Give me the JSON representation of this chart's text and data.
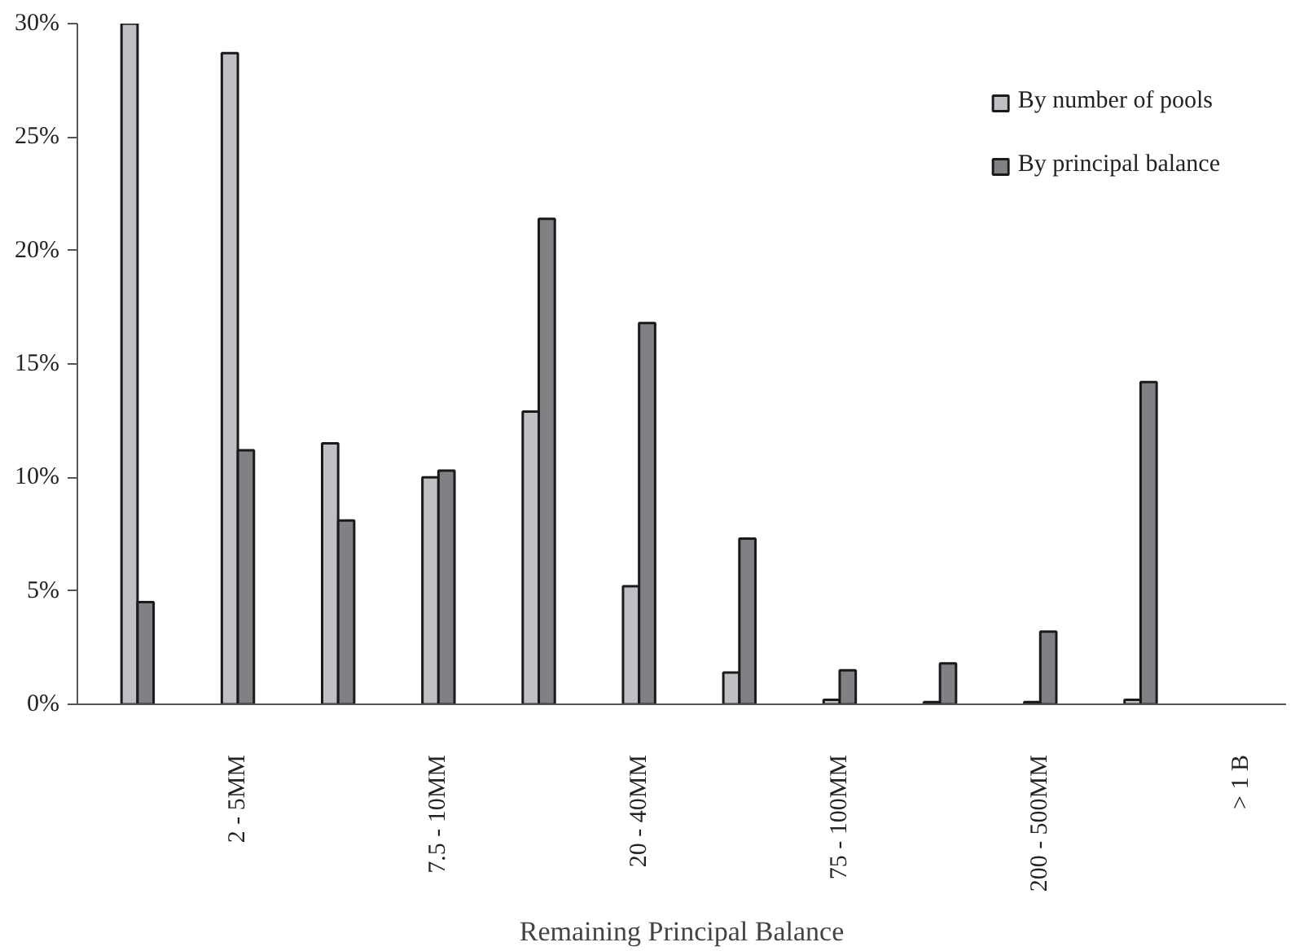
{
  "chart_data": {
    "type": "bar",
    "xlabel": "Remaining Principal Balance",
    "categories": [
      null,
      "2 - 5MM",
      null,
      "7.5 - 10MM",
      null,
      "20 - 40MM",
      null,
      "75 - 100MM",
      null,
      "200 - 500MM",
      null,
      "> 1 B"
    ],
    "series": [
      {
        "name": "By number of pools",
        "color": "#bfc0c4",
        "values": [
          30,
          28.7,
          11.5,
          10.0,
          12.9,
          5.2,
          1.4,
          0.2,
          0.1,
          0.1,
          0.2,
          null
        ]
      },
      {
        "name": "By principal balance",
        "color": "#808085",
        "values": [
          4.5,
          11.2,
          8.1,
          10.3,
          21.4,
          16.8,
          7.3,
          1.5,
          1.8,
          3.2,
          14.2,
          null
        ]
      }
    ],
    "ylim": [
      0,
      30
    ],
    "yticks": [
      {
        "value": 0,
        "label": "0%"
      },
      {
        "value": 5,
        "label": "5%"
      },
      {
        "value": 10,
        "label": "10%"
      },
      {
        "value": 15,
        "label": "15%"
      },
      {
        "value": 20,
        "label": "20%"
      },
      {
        "value": 25,
        "label": "25%"
      },
      {
        "value": 30,
        "label": "30%"
      }
    ],
    "grid": false,
    "legend": "top right"
  }
}
